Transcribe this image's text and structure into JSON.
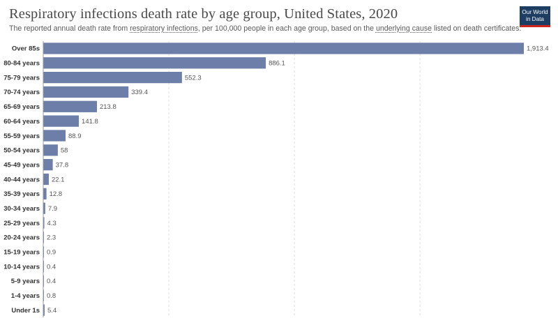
{
  "header": {
    "title": "Respiratory infections death rate by age group, United States, 2020",
    "subtitle_parts": [
      {
        "text": "The reported annual death rate from ",
        "u": false
      },
      {
        "text": "respiratory infections",
        "u": true
      },
      {
        "text": ", per 100,000 people in each age group, based on the ",
        "u": false
      },
      {
        "text": "underlying cause",
        "u": true
      },
      {
        "text": " listed on death certificates.",
        "u": false
      }
    ]
  },
  "logo": {
    "line1": "Our World",
    "line2": "in Data",
    "bg_color": "#1d3d63",
    "accent_color": "#ce261e"
  },
  "chart_data": {
    "type": "bar",
    "orientation": "horizontal",
    "categories": [
      "Over 85s",
      "80-84 years",
      "75-79 years",
      "70-74 years",
      "65-69 years",
      "60-64 years",
      "55-59 years",
      "50-54 years",
      "45-49 years",
      "40-44 years",
      "35-39 years",
      "30-34 years",
      "25-29 years",
      "20-24 years",
      "15-19 years",
      "10-14 years",
      "5-9 years",
      "1-4 years",
      "Under 1s"
    ],
    "values": [
      1913.4,
      886.1,
      552.3,
      339.4,
      213.8,
      141.8,
      88.9,
      58,
      37.8,
      22.1,
      12.8,
      7.9,
      4.3,
      2.3,
      0.9,
      0.4,
      0.4,
      0.8,
      5.4
    ],
    "value_labels": [
      "1,913.4",
      "886.1",
      "552.3",
      "339.4",
      "213.8",
      "141.8",
      "88.9",
      "58",
      "37.8",
      "22.1",
      "12.8",
      "7.9",
      "4.3",
      "2.3",
      "0.9",
      "0.4",
      "0.4",
      "0.8",
      "5.4"
    ],
    "xlim": [
      0,
      1913.4
    ],
    "gridlines_x": [
      0,
      500,
      1000,
      1500
    ],
    "grid": true,
    "bar_color": "#6d7fa8"
  }
}
